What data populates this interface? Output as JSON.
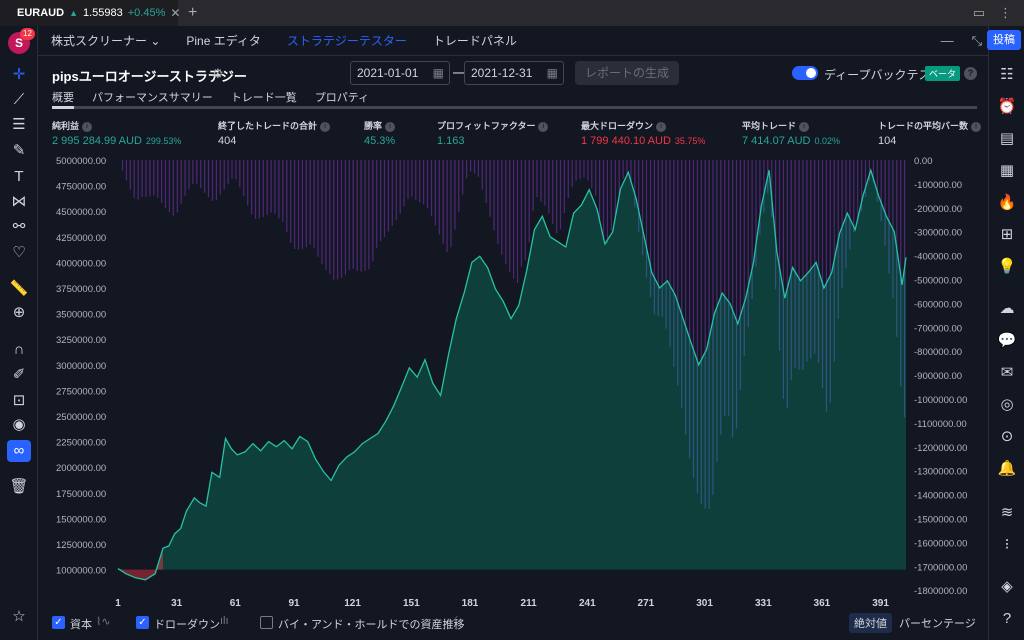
{
  "browser_tab": {
    "symbol": "EURAUD",
    "arrow": "▲",
    "price": "1.55983",
    "change": "+0.45%",
    "close": "✕",
    "new_tab": "+"
  },
  "user": {
    "initial": "S",
    "notifications": "12"
  },
  "panel_menu": [
    {
      "label": "株式スクリーナー ⌄"
    },
    {
      "label": "Pine エディタ"
    },
    {
      "label": "ストラテジーテスター"
    },
    {
      "label": "トレードパネル"
    }
  ],
  "post_button": "投稿",
  "strategy": {
    "title": "pipsユーロオージーストラテジー",
    "date_from": "2021-01-01",
    "date_to": "2021-12-31",
    "dash": "—",
    "generate_label": "レポートの生成",
    "deep_backtest_label": "ディープバックテスト",
    "beta_label": "ベータ",
    "help": "?"
  },
  "subtabs": [
    "概要",
    "パフォーマンスサマリー",
    "トレード一覧",
    "プロパティ"
  ],
  "metrics": [
    {
      "label": "純利益",
      "value": "2 995 284.99 AUD",
      "pct": "299.53%",
      "tone": "pos"
    },
    {
      "label": "終了したトレードの合計",
      "value": "404",
      "pct": "",
      "tone": "neu"
    },
    {
      "label": "勝率",
      "value": "45.3%",
      "pct": "",
      "tone": "pos"
    },
    {
      "label": "プロフィットファクター",
      "value": "1.163",
      "pct": "",
      "tone": "pos"
    },
    {
      "label": "最大ドローダウン",
      "value": "1 799 440.10 AUD",
      "pct": "35.75%",
      "tone": "neg"
    },
    {
      "label": "平均トレード",
      "value": "7 414.07 AUD",
      "pct": "0.02%",
      "tone": "pos"
    },
    {
      "label": "トレードの平均バー数",
      "value": "104",
      "pct": "",
      "tone": "neu"
    }
  ],
  "chart_data": {
    "type": "area",
    "x_ticks": [
      "1",
      "31",
      "61",
      "91",
      "121",
      "151",
      "181",
      "211",
      "241",
      "271",
      "301",
      "331",
      "361",
      "391"
    ],
    "y_left_ticks": [
      "5000000.00",
      "4750000.00",
      "4500000.00",
      "4250000.00",
      "4000000.00",
      "3750000.00",
      "3500000.00",
      "3250000.00",
      "3000000.00",
      "2750000.00",
      "2500000.00",
      "2250000.00",
      "2000000.00",
      "1750000.00",
      "1500000.00",
      "1250000.00",
      "1000000.00"
    ],
    "y_right_ticks": [
      "0.00",
      "-100000.00",
      "-200000.00",
      "-300000.00",
      "-400000.00",
      "-500000.00",
      "-600000.00",
      "-700000.00",
      "-800000.00",
      "-900000.00",
      "-1000000.00",
      "-1100000.00",
      "-1200000.00",
      "-1300000.00",
      "-1400000.00",
      "-1500000.00",
      "-1600000.00",
      "-1700000.00",
      "-1800000.00"
    ],
    "y_left_range": [
      1000000,
      5000000
    ],
    "y_right_range": [
      -1800000,
      0
    ],
    "x_range": [
      1,
      404
    ],
    "series": [
      {
        "name": "資本",
        "points": [
          [
            1,
            1010000
          ],
          [
            5,
            960000
          ],
          [
            10,
            920000
          ],
          [
            15,
            900000
          ],
          [
            20,
            960000
          ],
          [
            24,
            1210000
          ],
          [
            27,
            1230000
          ],
          [
            30,
            1350000
          ],
          [
            33,
            1400000
          ],
          [
            36,
            1570000
          ],
          [
            40,
            1700000
          ],
          [
            43,
            1650000
          ],
          [
            46,
            1620000
          ],
          [
            49,
            1950000
          ],
          [
            53,
            1900000
          ],
          [
            56,
            2280000
          ],
          [
            59,
            2180000
          ],
          [
            62,
            2120000
          ],
          [
            66,
            2150000
          ],
          [
            70,
            2230000
          ],
          [
            74,
            2160000
          ],
          [
            78,
            2250000
          ],
          [
            82,
            2200000
          ],
          [
            86,
            2260000
          ],
          [
            90,
            2180000
          ],
          [
            94,
            2300000
          ],
          [
            98,
            2250000
          ],
          [
            102,
            2080000
          ],
          [
            106,
            1960000
          ],
          [
            110,
            1870000
          ],
          [
            114,
            2020000
          ],
          [
            118,
            2100000
          ],
          [
            122,
            2150000
          ],
          [
            126,
            2230000
          ],
          [
            130,
            2280000
          ],
          [
            134,
            2330000
          ],
          [
            138,
            2450000
          ],
          [
            142,
            2600000
          ],
          [
            146,
            2780000
          ],
          [
            150,
            2970000
          ],
          [
            154,
            2880000
          ],
          [
            158,
            3050000
          ],
          [
            162,
            2820000
          ],
          [
            166,
            2700000
          ],
          [
            170,
            3100000
          ],
          [
            174,
            3450000
          ],
          [
            178,
            3700000
          ],
          [
            182,
            4000000
          ],
          [
            186,
            4060000
          ],
          [
            190,
            3950000
          ],
          [
            194,
            3740000
          ],
          [
            198,
            3620000
          ],
          [
            202,
            3450000
          ],
          [
            206,
            3580000
          ],
          [
            210,
            3920000
          ],
          [
            214,
            4320000
          ],
          [
            218,
            4450000
          ],
          [
            222,
            4250000
          ],
          [
            226,
            4200000
          ],
          [
            230,
            4150000
          ],
          [
            234,
            4480000
          ],
          [
            238,
            4560000
          ],
          [
            242,
            4710000
          ],
          [
            246,
            4520000
          ],
          [
            250,
            4180000
          ],
          [
            254,
            4300000
          ],
          [
            258,
            4720000
          ],
          [
            262,
            4880000
          ],
          [
            266,
            4620000
          ],
          [
            270,
            4260000
          ],
          [
            274,
            3900000
          ],
          [
            278,
            3750000
          ],
          [
            282,
            3820000
          ],
          [
            286,
            3680000
          ],
          [
            290,
            3450000
          ],
          [
            294,
            3220000
          ],
          [
            298,
            3000000
          ],
          [
            302,
            3150000
          ],
          [
            306,
            3500000
          ],
          [
            310,
            3700000
          ],
          [
            314,
            3600000
          ],
          [
            318,
            3400000
          ],
          [
            322,
            3650000
          ],
          [
            326,
            4000000
          ],
          [
            330,
            4550000
          ],
          [
            334,
            4900000
          ],
          [
            338,
            4100000
          ],
          [
            342,
            3650000
          ],
          [
            346,
            3950000
          ],
          [
            350,
            3820000
          ],
          [
            354,
            3900000
          ],
          [
            358,
            4000000
          ],
          [
            362,
            3750000
          ],
          [
            366,
            3900000
          ],
          [
            370,
            4280000
          ],
          [
            374,
            4480000
          ],
          [
            378,
            4320000
          ],
          [
            382,
            4650000
          ],
          [
            386,
            4900000
          ],
          [
            390,
            4650000
          ],
          [
            394,
            4450000
          ],
          [
            398,
            4300000
          ],
          [
            402,
            3780000
          ],
          [
            404,
            4050000
          ]
        ]
      },
      {
        "name": "ドローダウン",
        "points": [
          [
            1,
            0
          ],
          [
            10,
            -200000
          ],
          [
            20,
            -150000
          ],
          [
            30,
            -250000
          ],
          [
            40,
            -100000
          ],
          [
            50,
            -180000
          ],
          [
            60,
            -80000
          ],
          [
            70,
            -250000
          ],
          [
            80,
            -230000
          ],
          [
            90,
            -400000
          ],
          [
            100,
            -350000
          ],
          [
            110,
            -600000
          ],
          [
            120,
            -450000
          ],
          [
            130,
            -500000
          ],
          [
            140,
            -300000
          ],
          [
            150,
            -150000
          ],
          [
            160,
            -250000
          ],
          [
            170,
            -400000
          ],
          [
            180,
            -50000
          ],
          [
            185,
            -80000
          ],
          [
            195,
            -350000
          ],
          [
            205,
            -600000
          ],
          [
            210,
            -450000
          ],
          [
            214,
            -150000
          ],
          [
            220,
            -200000
          ],
          [
            226,
            -350000
          ],
          [
            234,
            -100000
          ],
          [
            240,
            -70000
          ],
          [
            245,
            -150000
          ],
          [
            250,
            -400000
          ],
          [
            255,
            -300000
          ],
          [
            258,
            -100000
          ],
          [
            262,
            -50000
          ],
          [
            268,
            -350000
          ],
          [
            275,
            -700000
          ],
          [
            282,
            -850000
          ],
          [
            288,
            -1000000
          ],
          [
            294,
            -1300000
          ],
          [
            300,
            -1600000
          ],
          [
            304,
            -1780000
          ],
          [
            308,
            -1300000
          ],
          [
            312,
            -1050000
          ],
          [
            316,
            -1200000
          ],
          [
            320,
            -900000
          ],
          [
            326,
            -600000
          ],
          [
            330,
            -300000
          ],
          [
            334,
            -100000
          ],
          [
            338,
            -700000
          ],
          [
            342,
            -1100000
          ],
          [
            346,
            -900000
          ],
          [
            352,
            -1050000
          ],
          [
            358,
            -850000
          ],
          [
            364,
            -1100000
          ],
          [
            370,
            -600000
          ],
          [
            376,
            -400000
          ],
          [
            382,
            -200000
          ],
          [
            386,
            -50000
          ],
          [
            392,
            -300000
          ],
          [
            398,
            -700000
          ],
          [
            402,
            -1300000
          ],
          [
            404,
            -1200000
          ]
        ]
      }
    ],
    "colors": {
      "equity_line": "#26c2a6",
      "equity_fill": "#0e4d43",
      "equity_negative": "#f23645",
      "drawdown_fill": "#5b2a87",
      "drawdown_line": "#4a69bd"
    }
  },
  "bottom": {
    "equity_label": "資本",
    "drawdown_label": "ドローダウン",
    "buyhold_label": "バイ・アンド・ホールドでの資産推移",
    "absolute_label": "絶対値",
    "percent_label": "パーセンテージ"
  }
}
